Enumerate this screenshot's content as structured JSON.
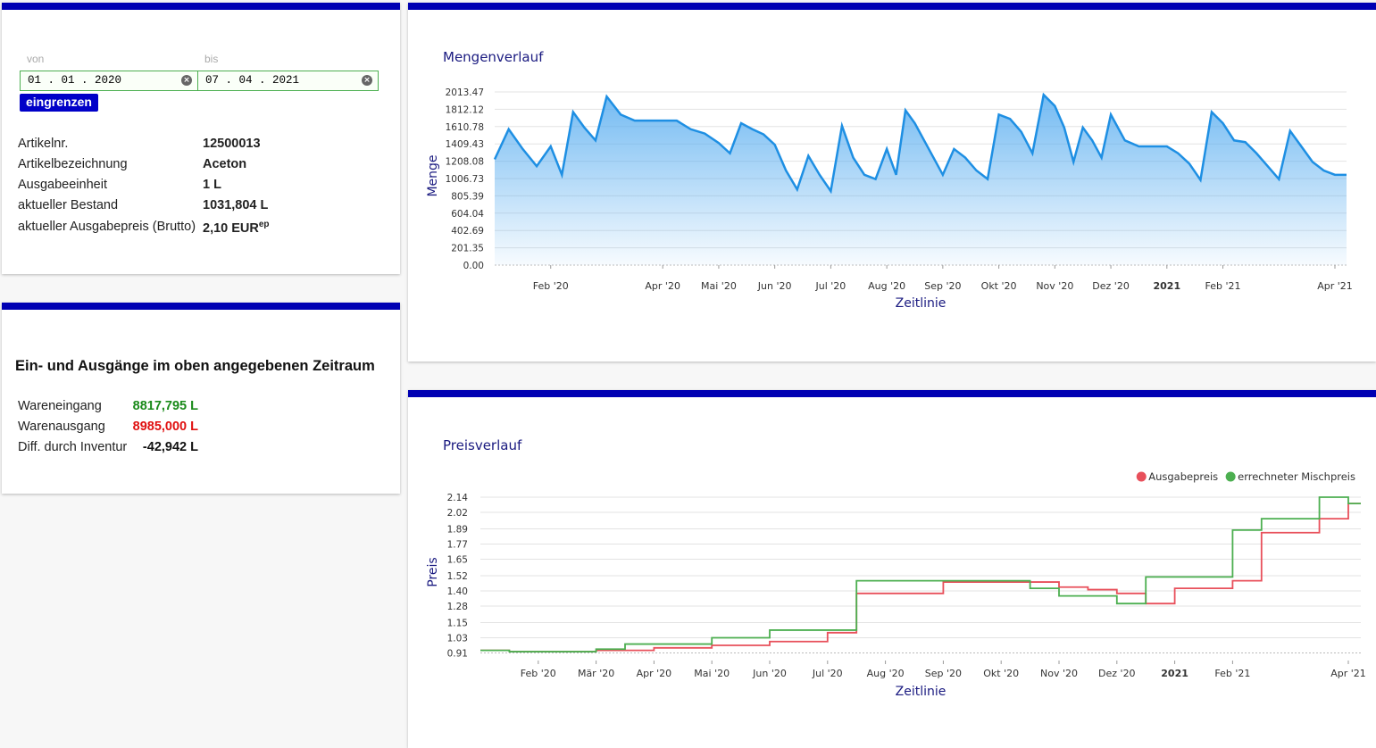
{
  "filter": {
    "from_label": "von",
    "from_value": "01 . 01 . 2020",
    "to_label": "bis",
    "to_value": "07 . 04 . 2021",
    "button": "eingrenzen"
  },
  "article": {
    "rows": [
      [
        "Artikelnr.",
        "12500013"
      ],
      [
        "Artikelbezeichnung",
        "Aceton"
      ],
      [
        "Ausgabeeinheit",
        "1 L"
      ],
      [
        "aktueller Bestand",
        "1031,804 L"
      ],
      [
        "aktueller Ausgabepreis (Brutto)",
        "2,10 EUR",
        "ep"
      ]
    ]
  },
  "movements": {
    "title": "Ein- und Ausgänge im oben angegebenen Zeitraum",
    "rows": [
      [
        "Wareneingang",
        "8817,795 L"
      ],
      [
        "Warenausgang",
        "8985,000 L"
      ],
      [
        "Diff. durch Inventur",
        "-42,942 L"
      ]
    ]
  },
  "chart_data": [
    {
      "type": "line",
      "area": true,
      "title": "Mengenverlauf",
      "x_label": "Zeitlinie",
      "y_label": "Menge",
      "color": "#1e8fe3",
      "grid": true,
      "x": [
        "2020-01",
        "2020-01",
        "2020-01",
        "2020-01",
        "2020-02",
        "2020-02",
        "2020-02",
        "2020-02",
        "2020-02",
        "2020-03",
        "2020-03",
        "2020-03",
        "2020-03",
        "2020-04",
        "2020-04",
        "2020-04",
        "2020-04",
        "2020-05",
        "2020-05",
        "2020-05",
        "2020-05",
        "2020-05",
        "2020-06",
        "2020-06",
        "2020-06",
        "2020-06",
        "2020-06",
        "2020-07",
        "2020-07",
        "2020-07",
        "2020-07",
        "2020-07",
        "2020-08",
        "2020-08",
        "2020-08",
        "2020-08",
        "2020-08",
        "2020-08",
        "2020-09",
        "2020-09",
        "2020-09",
        "2020-09",
        "2020-09",
        "2020-10",
        "2020-10",
        "2020-10",
        "2020-10",
        "2020-10",
        "2020-11",
        "2020-11",
        "2020-11",
        "2020-11",
        "2020-11",
        "2020-11",
        "2020-12",
        "2020-12",
        "2020-12",
        "2020-12",
        "2021-01",
        "2021-01",
        "2021-01",
        "2021-01",
        "2021-01",
        "2021-02",
        "2021-02",
        "2021-02",
        "2021-02",
        "2021-02",
        "2021-03",
        "2021-03",
        "2021-03",
        "2021-03",
        "2021-03",
        "2021-04"
      ],
      "values": [
        1230,
        1580,
        1350,
        1150,
        1380,
        1050,
        1780,
        1600,
        1450,
        1960,
        1750,
        1680,
        1680,
        1680,
        1680,
        1580,
        1530,
        1420,
        1300,
        1650,
        1580,
        1520,
        1400,
        1100,
        880,
        1270,
        1050,
        860,
        1620,
        1250,
        1050,
        1000,
        1350,
        1050,
        1800,
        1650,
        1450,
        1250,
        1050,
        1350,
        1250,
        1100,
        1000,
        1750,
        1700,
        1550,
        1300,
        1980,
        1850,
        1600,
        1200,
        1600,
        1450,
        1250,
        1750,
        1450,
        1380,
        1380,
        1380,
        1300,
        1180,
        990,
        1780,
        1650,
        1450,
        1430,
        1300,
        1150,
        1000,
        1560,
        1380,
        1200,
        1100,
        1050
      ],
      "xlim": [
        "2020-01",
        "2021-04"
      ],
      "xticks": [
        {
          "value": "2020-02",
          "label": "Feb '20"
        },
        {
          "value": "2020-04",
          "label": "Apr '20"
        },
        {
          "value": "2020-05",
          "label": "Mai '20"
        },
        {
          "value": "2020-06",
          "label": "Jun '20"
        },
        {
          "value": "2020-07",
          "label": "Jul '20"
        },
        {
          "value": "2020-08",
          "label": "Aug '20"
        },
        {
          "value": "2020-09",
          "label": "Sep '20"
        },
        {
          "value": "2020-10",
          "label": "Okt '20"
        },
        {
          "value": "2020-11",
          "label": "Nov '20"
        },
        {
          "value": "2020-12",
          "label": "Dez '20"
        },
        {
          "value": "2021-01",
          "label": "2021"
        },
        {
          "value": "2021-02",
          "label": "Feb '21"
        },
        {
          "value": "2021-04",
          "label": "Apr '21"
        }
      ],
      "ylim": [
        0,
        2013.47
      ],
      "yticks": [
        {
          "value": 0,
          "label": "0.00"
        },
        201.35,
        402.69,
        604.04,
        805.39,
        1006.73,
        1208.08,
        1409.43,
        1610.78,
        1812.12,
        2013.47
      ]
    },
    {
      "type": "line",
      "step": true,
      "title": "Preisverlauf",
      "x_label": "Zeitlinie",
      "y_label": "Preis",
      "grid": true,
      "legend": "top-right",
      "x": [
        "2020-01",
        "2020-01",
        "2020-02",
        "2020-02",
        "2020-03",
        "2020-03",
        "2020-04",
        "2020-04",
        "2020-05",
        "2020-05",
        "2020-06",
        "2020-06",
        "2020-07",
        "2020-07",
        "2020-08",
        "2020-08",
        "2020-09",
        "2020-09",
        "2020-10",
        "2020-10",
        "2020-11",
        "2020-11",
        "2020-12",
        "2020-12",
        "2021-01",
        "2021-01",
        "2021-02",
        "2021-02",
        "2021-03",
        "2021-03",
        "2021-04"
      ],
      "series": [
        {
          "name": "Ausgabepreis",
          "color": "#e8505b",
          "values": [
            0.93,
            0.92,
            0.92,
            0.92,
            0.93,
            0.93,
            0.95,
            0.95,
            0.97,
            0.97,
            1.0,
            1.0,
            1.07,
            1.38,
            1.38,
            1.38,
            1.47,
            1.47,
            1.47,
            1.47,
            1.43,
            1.41,
            1.38,
            1.3,
            1.42,
            1.42,
            1.48,
            1.86,
            1.86,
            1.97,
            2.09
          ]
        },
        {
          "name": "errechneter Mischpreis",
          "color": "#4caf50",
          "values": [
            0.93,
            0.92,
            0.92,
            0.92,
            0.94,
            0.98,
            0.98,
            0.98,
            1.03,
            1.03,
            1.09,
            1.09,
            1.09,
            1.48,
            1.48,
            1.48,
            1.48,
            1.48,
            1.48,
            1.42,
            1.36,
            1.36,
            1.3,
            1.51,
            1.51,
            1.51,
            1.88,
            1.97,
            1.97,
            2.14,
            2.09
          ]
        }
      ],
      "xlim": [
        "2020-01",
        "2021-04"
      ],
      "xticks": [
        {
          "value": "2020-02",
          "label": "Feb '20"
        },
        {
          "value": "2020-03",
          "label": "Mär '20"
        },
        {
          "value": "2020-04",
          "label": "Apr '20"
        },
        {
          "value": "2020-05",
          "label": "Mai '20"
        },
        {
          "value": "2020-06",
          "label": "Jun '20"
        },
        {
          "value": "2020-07",
          "label": "Jul '20"
        },
        {
          "value": "2020-08",
          "label": "Aug '20"
        },
        {
          "value": "2020-09",
          "label": "Sep '20"
        },
        {
          "value": "2020-10",
          "label": "Okt '20"
        },
        {
          "value": "2020-11",
          "label": "Nov '20"
        },
        {
          "value": "2020-12",
          "label": "Dez '20"
        },
        {
          "value": "2021-01",
          "label": "2021"
        },
        {
          "value": "2021-02",
          "label": "Feb '21"
        },
        {
          "value": "2021-04",
          "label": "Apr '21"
        }
      ],
      "ylim": [
        0.85,
        2.14
      ],
      "yticks": [
        0.91,
        1.03,
        1.15,
        1.28,
        {
          "value": 1.4,
          "label": "1.40"
        },
        1.52,
        1.65,
        1.77,
        1.89,
        2.02,
        2.14
      ]
    }
  ]
}
